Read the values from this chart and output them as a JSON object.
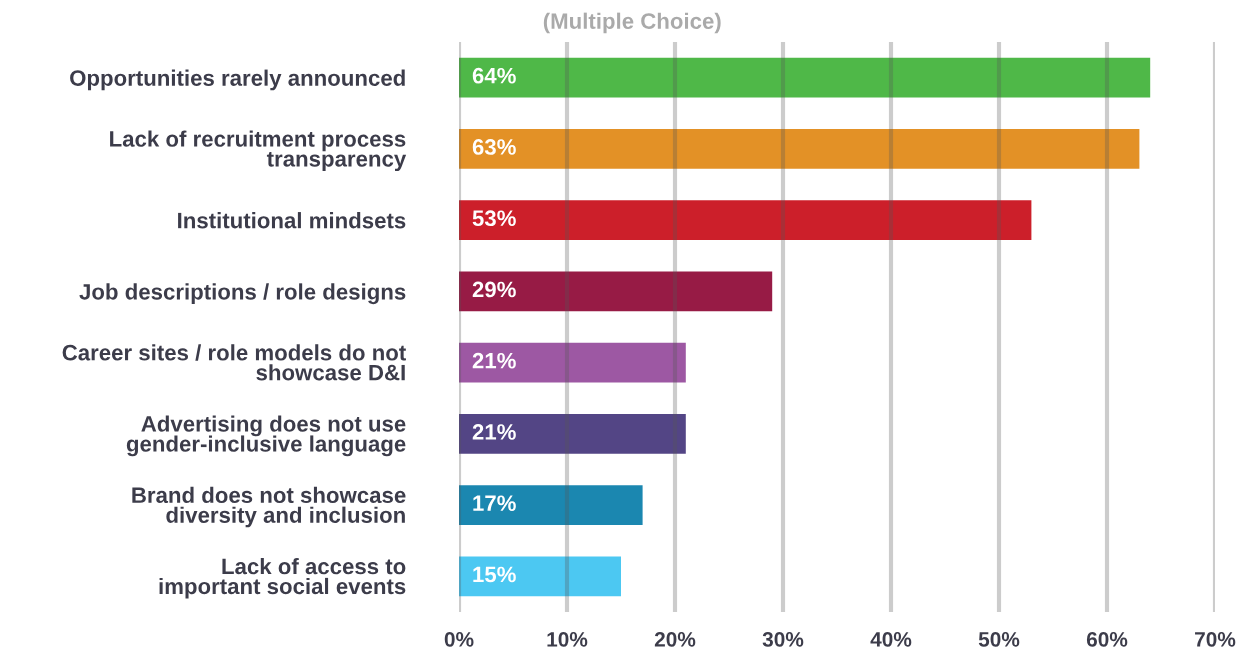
{
  "chart_data": {
    "type": "bar",
    "orientation": "horizontal",
    "title": "(Multiple Choice)",
    "categories": [
      "Opportunities rarely announced",
      "Lack of recruitment process\ntransparency",
      "Institutional mindsets",
      "Job descriptions / role designs",
      "Career sites / role models do not\nshowcase D&I",
      "Advertising does not use\ngender-inclusive language",
      "Brand does not showcase\ndiversity and inclusion",
      "Lack of access to\nimportant social events"
    ],
    "values": [
      64,
      63,
      53,
      29,
      21,
      21,
      17,
      15
    ],
    "colors": [
      "#4fb848",
      "#e39126",
      "#cc1f2a",
      "#971b45",
      "#9d58a3",
      "#534585",
      "#1b87b0",
      "#4cc8f2"
    ],
    "value_labels": [
      "64%",
      "63%",
      "53%",
      "29%",
      "21%",
      "21%",
      "17%",
      "15%"
    ],
    "xlim": [
      0,
      70
    ],
    "xticks": [
      {
        "value": 0,
        "label": "0%"
      },
      {
        "value": 10,
        "label": "10%"
      },
      {
        "value": 20,
        "label": "20%"
      },
      {
        "value": 30,
        "label": "30%"
      },
      {
        "value": 40,
        "label": "40%"
      },
      {
        "value": 50,
        "label": "50%"
      },
      {
        "value": 60,
        "label": "60%"
      },
      {
        "value": 70,
        "label": "70%"
      }
    ],
    "grid": "x",
    "legend": false
  }
}
